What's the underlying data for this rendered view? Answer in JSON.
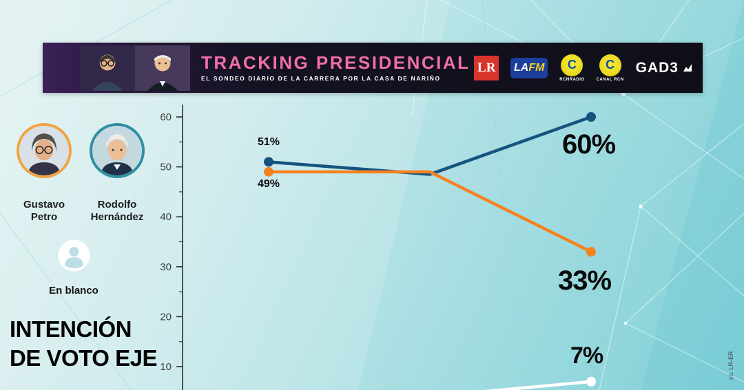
{
  "header": {
    "title": "TRACKING PRESIDENCIAL",
    "subtitle": "EL SONDEO DIARIO DE LA CARRERA POR LA CASA DE NARIÑO",
    "logos": {
      "lr": "LR",
      "lafm_la": "LA",
      "lafm_fm": "FM",
      "rcn_letter": "C",
      "rcn_radio_label": "RCNRADIO",
      "canal_rcn_label": "CANAL RCN",
      "gad3": "GAD3"
    }
  },
  "candidates": [
    {
      "name_line1": "Gustavo",
      "name_line2": "Petro",
      "ring_color": "#f2a440"
    },
    {
      "name_line1": "Rodolfo",
      "name_line2": "Hernández",
      "ring_color": "#2e8fa3"
    }
  ],
  "blank_option": {
    "label": "En blanco"
  },
  "section_title": {
    "line1": "INTENCIÓN",
    "line2": "DE VOTO EJE"
  },
  "credit": "co. LR-ER",
  "chart_data": {
    "type": "line",
    "x": [
      1,
      2,
      3
    ],
    "series": [
      {
        "name": "Gustavo Petro",
        "color": "#15537f",
        "values": [
          51,
          48.5,
          60
        ],
        "start_label": "51%",
        "end_label": "60%"
      },
      {
        "name": "Rodolfo Hernández",
        "color": "#f58220",
        "values": [
          49,
          49,
          33
        ],
        "start_label": "49%",
        "end_label": "33%"
      },
      {
        "name": "En blanco",
        "color": "#ffffff",
        "values": [
          null,
          4,
          7
        ],
        "end_label": "7%"
      }
    ],
    "yticks": [
      10,
      20,
      30,
      40,
      50,
      60
    ],
    "ylim": [
      0,
      65
    ],
    "grid": false,
    "legend_position": "left"
  }
}
